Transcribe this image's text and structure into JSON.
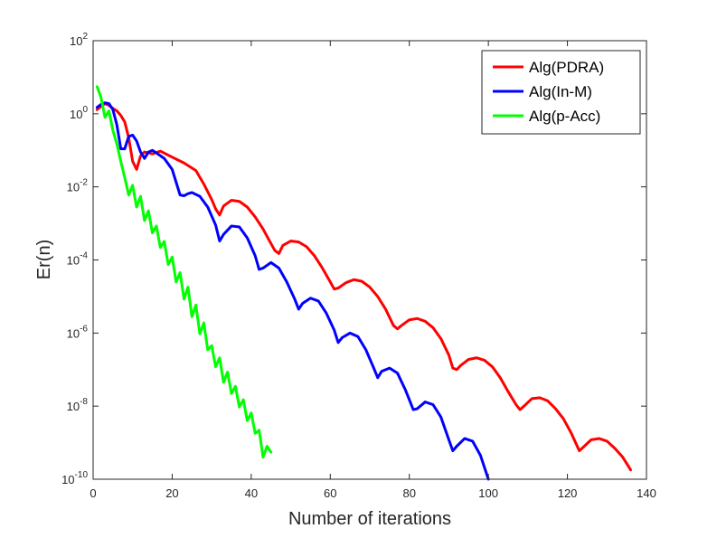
{
  "chart_data": {
    "type": "line",
    "title": "",
    "xlabel": "Number of iterations",
    "ylabel": "Er(n)",
    "xlim": [
      0,
      140
    ],
    "ylim": [
      1e-10,
      100
    ],
    "yscale": "log",
    "grid": false,
    "legend_position": "top-right",
    "x_ticks": [
      "0",
      "20",
      "40",
      "60",
      "80",
      "100",
      "120",
      "140"
    ],
    "y_ticks": [
      {
        "base": "10",
        "exp": "2"
      },
      {
        "base": "10",
        "exp": "0"
      },
      {
        "base": "10",
        "exp": "-2"
      },
      {
        "base": "10",
        "exp": "-4"
      },
      {
        "base": "10",
        "exp": "-6"
      },
      {
        "base": "10",
        "exp": "-8"
      },
      {
        "base": "10",
        "exp": "-10"
      }
    ],
    "series": [
      {
        "name": "Alg(PDRA)",
        "color": "#ff0000",
        "points": [
          [
            1,
            1.3
          ],
          [
            2,
            1.6
          ],
          [
            3,
            1.9
          ],
          [
            4,
            1.7
          ],
          [
            5,
            1.4
          ],
          [
            6,
            1.2
          ],
          [
            7,
            0.9
          ],
          [
            8,
            0.6
          ],
          [
            9,
            0.22
          ],
          [
            10,
            0.05
          ],
          [
            11,
            0.03
          ],
          [
            12,
            0.07
          ],
          [
            13,
            0.09
          ],
          [
            15,
            0.08
          ],
          [
            17,
            0.095
          ],
          [
            20,
            0.065
          ],
          [
            23,
            0.045
          ],
          [
            26,
            0.028
          ],
          [
            28,
            0.012
          ],
          [
            30,
            0.0045
          ],
          [
            31,
            0.0025
          ],
          [
            32,
            0.0017
          ],
          [
            33,
            0.003
          ],
          [
            35,
            0.0043
          ],
          [
            37,
            0.004
          ],
          [
            39,
            0.0028
          ],
          [
            41,
            0.0015
          ],
          [
            43,
            0.0007
          ],
          [
            45,
            0.00028
          ],
          [
            46,
            0.00018
          ],
          [
            47,
            0.00015
          ],
          [
            48,
            0.00025
          ],
          [
            50,
            0.00033
          ],
          [
            52,
            0.00031
          ],
          [
            54,
            0.00023
          ],
          [
            56,
            0.00013
          ],
          [
            58,
            6e-05
          ],
          [
            60,
            2.5e-05
          ],
          [
            61,
            1.6e-05
          ],
          [
            62,
            1.7e-05
          ],
          [
            64,
            2.4e-05
          ],
          [
            66,
            2.9e-05
          ],
          [
            68,
            2.6e-05
          ],
          [
            70,
            1.8e-05
          ],
          [
            72,
            1e-05
          ],
          [
            74,
            4.5e-06
          ],
          [
            76,
            1.6e-06
          ],
          [
            77,
            1.3e-06
          ],
          [
            78,
            1.6e-06
          ],
          [
            80,
            2.3e-06
          ],
          [
            82,
            2.5e-06
          ],
          [
            84,
            2.1e-06
          ],
          [
            86,
            1.4e-06
          ],
          [
            88,
            7e-07
          ],
          [
            90,
            2.5e-07
          ],
          [
            91,
            1.1e-07
          ],
          [
            92,
            1e-07
          ],
          [
            93,
            1.3e-07
          ],
          [
            95,
            1.9e-07
          ],
          [
            97,
            2.1e-07
          ],
          [
            99,
            1.8e-07
          ],
          [
            101,
            1.2e-07
          ],
          [
            103,
            6e-08
          ],
          [
            105,
            2.5e-08
          ],
          [
            107,
            1.1e-08
          ],
          [
            108,
            8e-09
          ],
          [
            109,
            1e-08
          ],
          [
            111,
            1.6e-08
          ],
          [
            113,
            1.7e-08
          ],
          [
            115,
            1.4e-08
          ],
          [
            117,
            8.5e-09
          ],
          [
            119,
            4.5e-09
          ],
          [
            121,
            1.8e-09
          ],
          [
            123,
            6e-10
          ],
          [
            124,
            7.5e-10
          ],
          [
            126,
            1.2e-09
          ],
          [
            128,
            1.3e-09
          ],
          [
            130,
            1.1e-09
          ],
          [
            132,
            7e-10
          ],
          [
            134,
            4e-10
          ],
          [
            136,
            1.8e-10
          ]
        ]
      },
      {
        "name": "Alg(In-M)",
        "color": "#0000ff",
        "points": [
          [
            1,
            1.5
          ],
          [
            2,
            1.8
          ],
          [
            3,
            2.0
          ],
          [
            4,
            1.9
          ],
          [
            5,
            1.3
          ],
          [
            6,
            0.5
          ],
          [
            7,
            0.11
          ],
          [
            8,
            0.11
          ],
          [
            9,
            0.24
          ],
          [
            10,
            0.26
          ],
          [
            11,
            0.18
          ],
          [
            12,
            0.09
          ],
          [
            13,
            0.06
          ],
          [
            14,
            0.09
          ],
          [
            15,
            0.1
          ],
          [
            16,
            0.085
          ],
          [
            18,
            0.06
          ],
          [
            20,
            0.03
          ],
          [
            22,
            0.006
          ],
          [
            23,
            0.0057
          ],
          [
            24,
            0.0065
          ],
          [
            25,
            0.007
          ],
          [
            27,
            0.0055
          ],
          [
            29,
            0.0028
          ],
          [
            31,
            0.0009
          ],
          [
            32,
            0.00033
          ],
          [
            33,
            0.0005
          ],
          [
            35,
            0.00085
          ],
          [
            37,
            0.0008
          ],
          [
            39,
            0.0004
          ],
          [
            41,
            0.00013
          ],
          [
            42,
            5.5e-05
          ],
          [
            43,
            6e-05
          ],
          [
            45,
            8.5e-05
          ],
          [
            47,
            6e-05
          ],
          [
            49,
            2.5e-05
          ],
          [
            51,
            8.5e-06
          ],
          [
            52,
            4.5e-06
          ],
          [
            53,
            6.5e-06
          ],
          [
            55,
            9e-06
          ],
          [
            57,
            7.5e-06
          ],
          [
            59,
            3.5e-06
          ],
          [
            61,
            1.2e-06
          ],
          [
            62,
            5.5e-07
          ],
          [
            63,
            7.5e-07
          ],
          [
            65,
            1e-06
          ],
          [
            67,
            8e-07
          ],
          [
            69,
            3.5e-07
          ],
          [
            71,
            1.1e-07
          ],
          [
            72,
            6e-08
          ],
          [
            73,
            9e-08
          ],
          [
            75,
            1.1e-07
          ],
          [
            77,
            8e-08
          ],
          [
            79,
            2.8e-08
          ],
          [
            81,
            8e-09
          ],
          [
            82,
            8.5e-09
          ],
          [
            84,
            1.3e-08
          ],
          [
            86,
            1.1e-08
          ],
          [
            88,
            5e-09
          ],
          [
            90,
            1.2e-09
          ],
          [
            91,
            6e-10
          ],
          [
            92,
            8e-10
          ],
          [
            94,
            1.3e-09
          ],
          [
            96,
            1.1e-09
          ],
          [
            98,
            4.5e-10
          ],
          [
            100,
            1e-10
          ]
        ]
      },
      {
        "name": "Alg(p-Acc)",
        "color": "#00ff00",
        "points": [
          [
            1,
            5.5
          ],
          [
            2,
            2.8
          ],
          [
            3,
            0.8
          ],
          [
            4,
            1.2
          ],
          [
            5,
            0.35
          ],
          [
            6,
            0.15
          ],
          [
            7,
            0.05
          ],
          [
            8,
            0.018
          ],
          [
            9,
            0.006
          ],
          [
            10,
            0.011
          ],
          [
            11,
            0.0028
          ],
          [
            12,
            0.0055
          ],
          [
            13,
            0.0012
          ],
          [
            14,
            0.0022
          ],
          [
            15,
            0.00055
          ],
          [
            16,
            0.00085
          ],
          [
            17,
            0.00022
          ],
          [
            18,
            0.00032
          ],
          [
            19,
            7.5e-05
          ],
          [
            20,
            0.00012
          ],
          [
            21,
            2.5e-05
          ],
          [
            22,
            4.5e-05
          ],
          [
            23,
            8.5e-06
          ],
          [
            24,
            1.8e-05
          ],
          [
            25,
            2.8e-06
          ],
          [
            26,
            5.8e-06
          ],
          [
            27,
            9.5e-07
          ],
          [
            28,
            1.9e-06
          ],
          [
            29,
            3.5e-07
          ],
          [
            30,
            4.5e-07
          ],
          [
            31,
            1.2e-07
          ],
          [
            32,
            2.1e-07
          ],
          [
            33,
            4.5e-08
          ],
          [
            34,
            8.5e-08
          ],
          [
            35,
            2.2e-08
          ],
          [
            36,
            3.5e-08
          ],
          [
            37,
            9.5e-09
          ],
          [
            38,
            1.5e-08
          ],
          [
            39,
            4e-09
          ],
          [
            40,
            6.5e-09
          ],
          [
            41,
            1.8e-09
          ],
          [
            42,
            2.2e-09
          ],
          [
            43,
            4e-10
          ],
          [
            44,
            8e-10
          ],
          [
            45,
            5.5e-10
          ]
        ]
      }
    ]
  }
}
